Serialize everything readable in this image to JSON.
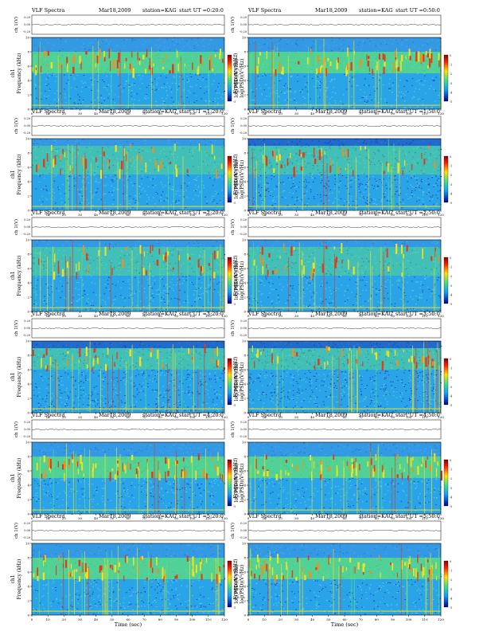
{
  "page": {
    "background": "#ffffff"
  },
  "common": {
    "title_left": "VLF Spectra",
    "date": "Mar18,2009",
    "station": "station=KAG",
    "start_prefix": "start  UT =",
    "waveform_ylabel": "ch 1(V)",
    "waveform_ticks": [
      "0.20",
      "0.00",
      "-0.20"
    ],
    "spec_ylabel_ch": "ch1",
    "spec_ylabel_left": "Frequency  (kHz)",
    "spec_ylabel_right": "Frequency  (kHz)",
    "colorbar_label": "log(PSD)(V²/Hz)",
    "xlabel": "Time  (sec)",
    "x_ticks": [
      "0",
      "10",
      "20",
      "30",
      "40",
      "50",
      "60",
      "70",
      "80",
      "90",
      "100",
      "110",
      "120"
    ],
    "y_ticks": [
      "0",
      "2",
      "4",
      "6",
      "8",
      "10"
    ],
    "colorbar_ticks": [
      "0",
      "-1",
      "-2",
      "-3",
      "-4",
      "-5"
    ]
  },
  "colors": {
    "background_noise": "#2aa4e8",
    "band_green": "#5fe07a",
    "band_yellow": "#f2e21e",
    "band_red": "#e23a18",
    "deep_blue": "#1a3db8"
  },
  "chart_data": [
    {
      "type": "heatmap",
      "start": "0:20:0",
      "xlim": [
        0,
        120
      ],
      "ylim": [
        0,
        10
      ],
      "clim": [
        -5,
        0
      ],
      "intense_band_khz": [
        5,
        8
      ],
      "texture": "dense-upper-band"
    },
    {
      "type": "heatmap",
      "start": "0:50:0",
      "xlim": [
        0,
        120
      ],
      "ylim": [
        0,
        10
      ],
      "clim": [
        -5,
        0
      ],
      "intense_band_khz": [
        5,
        8
      ],
      "texture": "dense-upper-band"
    },
    {
      "type": "heatmap",
      "start": "1:20:0",
      "xlim": [
        0,
        120
      ],
      "ylim": [
        0,
        10
      ],
      "clim": [
        -5,
        0
      ],
      "intense_band_khz": [
        5,
        9
      ],
      "texture": "mixed"
    },
    {
      "type": "heatmap",
      "start": "1:50:0",
      "xlim": [
        0,
        120
      ],
      "ylim": [
        0,
        10
      ],
      "clim": [
        -5,
        0
      ],
      "intense_band_khz": [
        5,
        9
      ],
      "texture": "blue-noise"
    },
    {
      "type": "heatmap",
      "start": "2:20:0",
      "xlim": [
        0,
        120
      ],
      "ylim": [
        0,
        10
      ],
      "clim": [
        -5,
        0
      ],
      "intense_band_khz": [
        5,
        9
      ],
      "texture": "mixed"
    },
    {
      "type": "heatmap",
      "start": "2:50:0",
      "xlim": [
        0,
        120
      ],
      "ylim": [
        0,
        10
      ],
      "clim": [
        -5,
        0
      ],
      "intense_band_khz": [
        5,
        9
      ],
      "texture": "mixed"
    },
    {
      "type": "heatmap",
      "start": "3:20:0",
      "xlim": [
        0,
        120
      ],
      "ylim": [
        0,
        10
      ],
      "clim": [
        -5,
        0
      ],
      "intense_band_khz": [
        6,
        9
      ],
      "texture": "blue-noise"
    },
    {
      "type": "heatmap",
      "start": "3:50:0",
      "xlim": [
        0,
        120
      ],
      "ylim": [
        0,
        10
      ],
      "clim": [
        -5,
        0
      ],
      "intense_band_khz": [
        6,
        9
      ],
      "texture": "blue-noise"
    },
    {
      "type": "heatmap",
      "start": "4:20:0",
      "xlim": [
        0,
        120
      ],
      "ylim": [
        0,
        10
      ],
      "clim": [
        -5,
        0
      ],
      "intense_band_khz": [
        5,
        8
      ],
      "texture": "dense-upper-band"
    },
    {
      "type": "heatmap",
      "start": "4:50:0",
      "xlim": [
        0,
        120
      ],
      "ylim": [
        0,
        10
      ],
      "clim": [
        -5,
        0
      ],
      "intense_band_khz": [
        5,
        8
      ],
      "texture": "dense-upper-band"
    },
    {
      "type": "heatmap",
      "start": "5:20:0",
      "xlim": [
        0,
        120
      ],
      "ylim": [
        0,
        10
      ],
      "clim": [
        -5,
        0
      ],
      "intense_band_khz": [
        5,
        8
      ],
      "texture": "dense-upper-band"
    },
    {
      "type": "heatmap",
      "start": "5:50:0",
      "xlim": [
        0,
        120
      ],
      "ylim": [
        0,
        10
      ],
      "clim": [
        -5,
        0
      ],
      "intense_band_khz": [
        5,
        8
      ],
      "texture": "dense-upper-band"
    }
  ]
}
